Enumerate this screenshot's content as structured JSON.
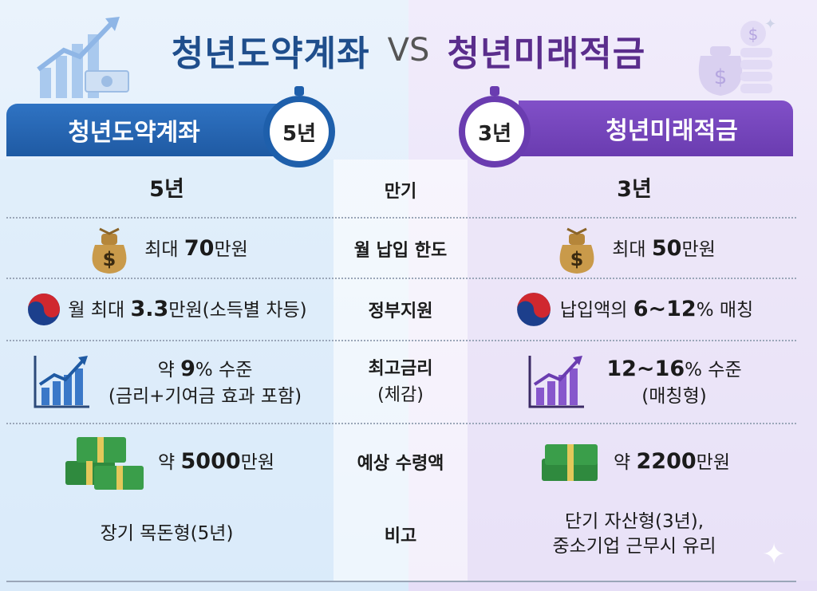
{
  "title": {
    "left": "청년도약계좌",
    "vs": "VS",
    "right": "청년미래적금"
  },
  "header": {
    "left_label": "청년도약계좌",
    "left_timer": "5년",
    "right_label": "청년미래적금",
    "right_timer": "3년"
  },
  "rows": [
    {
      "category": "만기",
      "left": "5년",
      "right": "3년"
    },
    {
      "category": "월 납입 한도",
      "left_pre": "최대 ",
      "left_num": "70",
      "left_post": "만원",
      "right_pre": "최대 ",
      "right_num": "50",
      "right_post": "만원"
    },
    {
      "category": "정부지원",
      "left_pre": "월 최대 ",
      "left_num": "3.3",
      "left_post": "만원(소득별 차등)",
      "right_pre": "납입액의 ",
      "right_num": "6~12",
      "right_post": "% 매칭"
    },
    {
      "category_line1": "최고금리",
      "category_line2": "(체감)",
      "left_pre": "약 ",
      "left_num": "9",
      "left_post": "% 수준",
      "left_line2": "(금리+기여금 효과 포함)",
      "right_num": "12~16",
      "right_post": "% 수준",
      "right_line2": "(매칭형)"
    },
    {
      "category": "예상 수령액",
      "left_pre": "약 ",
      "left_num": "5000",
      "left_post": "만원",
      "right_pre": "약 ",
      "right_num": "2200",
      "right_post": "만원"
    },
    {
      "category": "비고",
      "left": "장기 목돈형(5년)",
      "right_line1": "단기 자산형(3년),",
      "right_line2": "중소기업 근무시 유리"
    }
  ],
  "colors": {
    "left_accent": "#1f5aa3",
    "right_accent": "#6a3cb0",
    "money_bag": "#c99a4a",
    "cash": "#2f8a3e"
  },
  "icons": [
    "chart-up-icon",
    "cash-icon",
    "coins-bag-icon",
    "stopwatch-icon",
    "money-bag-icon",
    "korea-taegeuk-icon",
    "bar-chart-icon",
    "cash-stack-icon"
  ]
}
